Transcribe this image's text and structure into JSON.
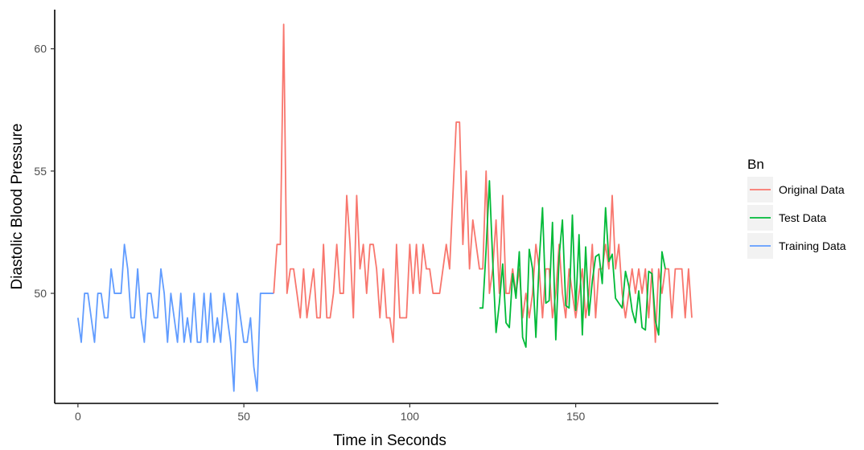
{
  "chart_data": {
    "type": "line",
    "xlabel": "Time in Seconds",
    "ylabel": "Diastolic Blood Pressure",
    "xlim": [
      -7,
      193
    ],
    "ylim": [
      45.5,
      61.6
    ],
    "x_ticks": [
      0,
      50,
      100,
      150
    ],
    "y_ticks": [
      50,
      55,
      60
    ],
    "grid": false,
    "legend": {
      "title": "Bn",
      "position": "right"
    },
    "series": [
      {
        "name": "Training Data",
        "color": "#619CFF",
        "x": [
          0,
          1,
          2,
          3,
          4,
          5,
          6,
          7,
          8,
          9,
          10,
          11,
          12,
          13,
          14,
          15,
          16,
          17,
          18,
          19,
          20,
          21,
          22,
          23,
          24,
          25,
          26,
          27,
          28,
          29,
          30,
          31,
          32,
          33,
          34,
          35,
          36,
          37,
          38,
          39,
          40,
          41,
          42,
          43,
          44,
          45,
          46,
          47,
          48,
          49,
          50,
          51,
          52,
          53,
          54,
          55,
          56,
          57,
          58,
          59
        ],
        "y": [
          49,
          48,
          50,
          50,
          49,
          48,
          50,
          50,
          49,
          49,
          51,
          50,
          50,
          50,
          52,
          51,
          49,
          49,
          51,
          49,
          48,
          50,
          50,
          49,
          49,
          51,
          50,
          48,
          50,
          49,
          48,
          50,
          48,
          49,
          48,
          50,
          48,
          48,
          50,
          48,
          50,
          48,
          49,
          48,
          50,
          49,
          48,
          46,
          50,
          49,
          48,
          48,
          49,
          47,
          46,
          50,
          50,
          50,
          50,
          50
        ]
      },
      {
        "name": "Original Data",
        "color": "#F8766D",
        "x": [
          59,
          60,
          61,
          62,
          63,
          64,
          65,
          66,
          67,
          68,
          69,
          70,
          71,
          72,
          73,
          74,
          75,
          76,
          77,
          78,
          79,
          80,
          81,
          82,
          83,
          84,
          85,
          86,
          87,
          88,
          89,
          90,
          91,
          92,
          93,
          94,
          95,
          96,
          97,
          98,
          99,
          100,
          101,
          102,
          103,
          104,
          105,
          106,
          107,
          108,
          109,
          110,
          111,
          112,
          113,
          114,
          115,
          116,
          117,
          118,
          119,
          120,
          121,
          122,
          123,
          124,
          125,
          126,
          127,
          128,
          129,
          130,
          131,
          132,
          133,
          134,
          135,
          136,
          137,
          138,
          139,
          140,
          141,
          142,
          143,
          144,
          145,
          146,
          147,
          148,
          149,
          150,
          151,
          152,
          153,
          154,
          155,
          156,
          157,
          158,
          159,
          160,
          161,
          162,
          163,
          164,
          165,
          166,
          167,
          168,
          169,
          170,
          171,
          172,
          173,
          174,
          175,
          176,
          177,
          178,
          179,
          180,
          181,
          182,
          183,
          184,
          185
        ],
        "y": [
          50,
          52,
          52,
          61,
          50,
          51,
          51,
          50,
          49,
          51,
          49,
          50,
          51,
          49,
          49,
          52,
          49,
          49,
          50,
          52,
          50,
          50,
          54,
          52,
          49,
          54,
          51,
          52,
          50,
          52,
          52,
          51,
          49,
          51,
          49,
          49,
          48,
          52,
          49,
          49,
          49,
          52,
          50,
          52,
          50,
          52,
          51,
          51,
          50,
          50,
          50,
          51,
          52,
          51,
          54,
          57,
          57,
          52,
          55,
          51,
          53,
          52,
          51,
          51,
          55,
          50,
          51,
          53,
          50,
          54,
          50,
          50,
          51,
          50,
          51,
          49,
          50,
          49,
          50,
          52,
          51,
          49,
          51,
          51,
          49,
          50,
          52,
          50,
          49,
          51,
          50,
          49,
          50,
          51,
          49,
          50,
          52,
          49,
          51,
          51,
          52,
          51,
          54,
          51,
          52,
          50,
          49,
          50,
          51,
          50,
          51,
          50,
          51,
          49,
          51,
          48,
          51,
          50,
          51,
          51,
          49,
          51,
          51,
          51,
          49,
          51,
          49
        ]
      },
      {
        "name": "Test Data",
        "color": "#00BA38",
        "x": [
          121,
          122,
          123,
          124,
          125,
          126,
          127,
          128,
          129,
          130,
          131,
          132,
          133,
          134,
          135,
          136,
          137,
          138,
          139,
          140,
          141,
          142,
          143,
          144,
          145,
          146,
          147,
          148,
          149,
          150,
          151,
          152,
          153,
          154,
          155,
          156,
          157,
          158,
          159,
          160,
          161,
          162,
          163,
          164,
          165,
          166,
          167,
          168,
          169,
          170,
          171,
          172,
          173,
          174,
          175,
          176,
          177
        ],
        "y": [
          49.4,
          49.4,
          51.8,
          54.6,
          51.3,
          48.4,
          49.6,
          51.2,
          48.8,
          48.6,
          50.8,
          49.8,
          51.7,
          48.2,
          47.8,
          51.8,
          51.0,
          48.2,
          51.3,
          53.5,
          49.6,
          49.7,
          52.9,
          48.1,
          51.5,
          53.0,
          49.5,
          49.4,
          53.2,
          49.3,
          52.4,
          48.3,
          51.9,
          49.1,
          50.5,
          51.5,
          51.6,
          50.4,
          53.5,
          51.3,
          51.6,
          49.8,
          49.6,
          49.4,
          50.9,
          50.3,
          49.3,
          48.8,
          50.1,
          48.6,
          48.5,
          50.9,
          50.8,
          48.9,
          48.3,
          51.7,
          51.0
        ]
      }
    ]
  }
}
